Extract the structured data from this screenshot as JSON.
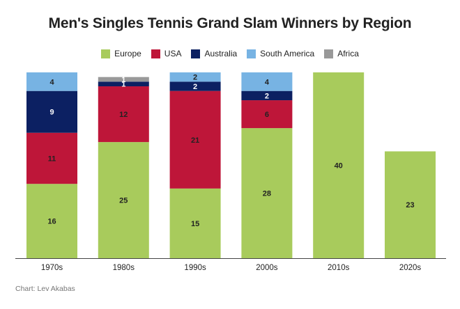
{
  "chart_data": {
    "type": "bar",
    "stacked": true,
    "title": "Men's Singles Tennis Grand Slam Winners by Region",
    "xlabel": "",
    "ylabel": "",
    "ylim": [
      0,
      40
    ],
    "legend_position": "top-center",
    "categories": [
      "1970s",
      "1980s",
      "1990s",
      "2000s",
      "2010s",
      "2020s"
    ],
    "series": [
      {
        "name": "Europe",
        "color": "#a8cb5c",
        "values": [
          16,
          25,
          15,
          28,
          40,
          23
        ]
      },
      {
        "name": "USA",
        "color": "#be1639",
        "values": [
          11,
          12,
          21,
          6,
          0,
          0
        ]
      },
      {
        "name": "Australia",
        "color": "#0c2062",
        "values": [
          9,
          1,
          2,
          2,
          0,
          0
        ]
      },
      {
        "name": "South America",
        "color": "#77b3e3",
        "values": [
          4,
          0,
          2,
          4,
          0,
          0
        ]
      },
      {
        "name": "Africa",
        "color": "#999999",
        "values": [
          0,
          1,
          0,
          0,
          0,
          0
        ]
      }
    ],
    "source": "Chart: Lev Akabas"
  }
}
